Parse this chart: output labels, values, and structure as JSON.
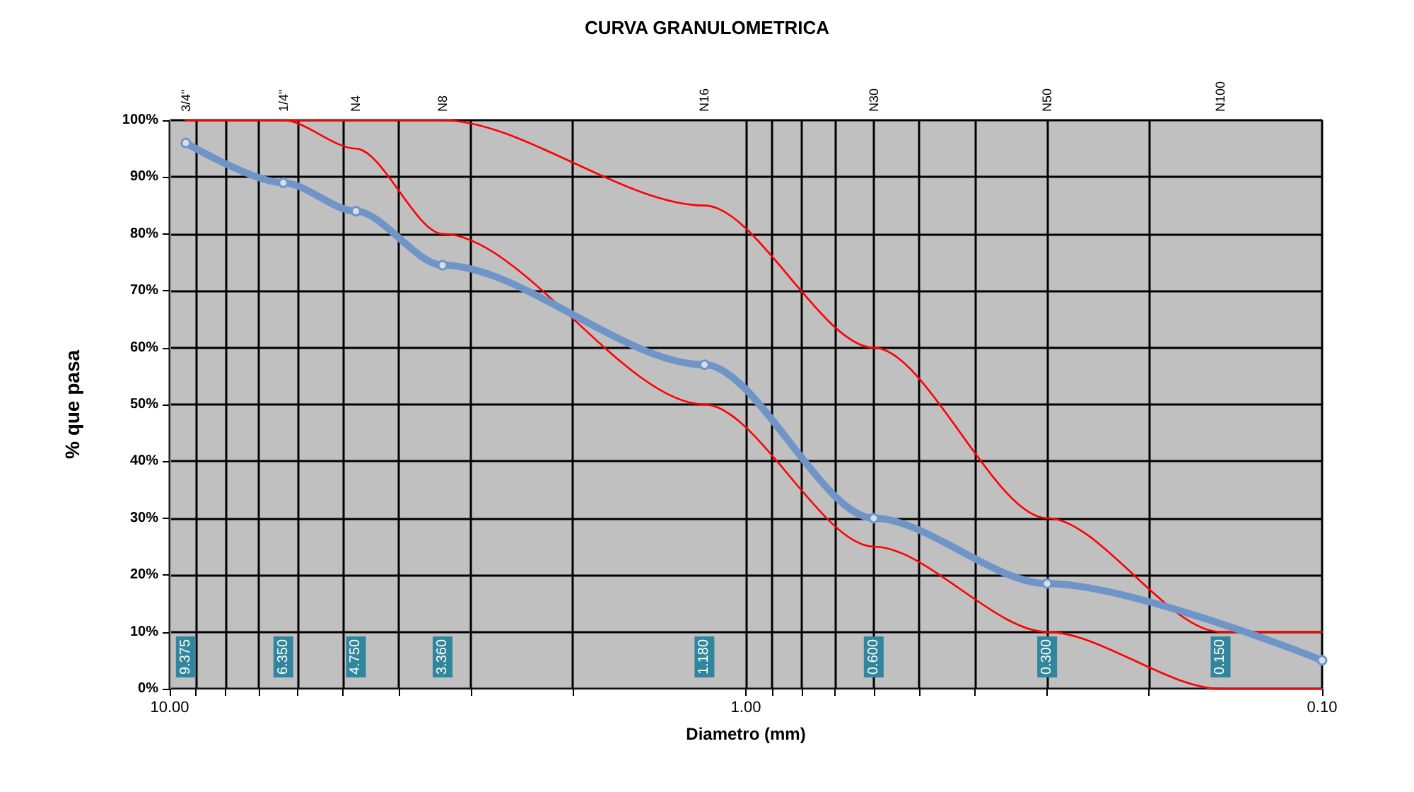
{
  "chart_data": {
    "type": "line",
    "title": "CURVA GRANULOMETRICA",
    "xlabel": "Diametro (mm)",
    "ylabel": "% que pasa",
    "log": "x",
    "grid": true,
    "xlim": [
      10,
      0.1
    ],
    "ylim": [
      0,
      100
    ],
    "xticks": [
      {
        "value": 10,
        "label": "10.00"
      },
      {
        "value": 9,
        "label": null
      },
      {
        "value": 8,
        "label": null
      },
      {
        "value": 7,
        "label": null
      },
      {
        "value": 6,
        "label": null
      },
      {
        "value": 5,
        "label": null
      },
      {
        "value": 4,
        "label": null
      },
      {
        "value": 3,
        "label": null
      },
      {
        "value": 2,
        "label": null
      },
      {
        "value": 1,
        "label": "1.00"
      },
      {
        "value": 0.9,
        "label": null
      },
      {
        "value": 0.8,
        "label": null
      },
      {
        "value": 0.7,
        "label": null
      },
      {
        "value": 0.6,
        "label": null
      },
      {
        "value": 0.5,
        "label": null
      },
      {
        "value": 0.4,
        "label": null
      },
      {
        "value": 0.3,
        "label": null
      },
      {
        "value": 0.2,
        "label": null
      },
      {
        "value": 0.1,
        "label": "0.10"
      }
    ],
    "yticks": [
      {
        "value": 0,
        "label": "0%"
      },
      {
        "value": 10,
        "label": "10%"
      },
      {
        "value": 20,
        "label": "20%"
      },
      {
        "value": 30,
        "label": "30%"
      },
      {
        "value": 40,
        "label": "40%"
      },
      {
        "value": 50,
        "label": "50%"
      },
      {
        "value": 60,
        "label": "60%"
      },
      {
        "value": 70,
        "label": "70%"
      },
      {
        "value": 80,
        "label": "80%"
      },
      {
        "value": 90,
        "label": "90%"
      },
      {
        "value": 100,
        "label": "100%"
      }
    ],
    "series": [
      {
        "color": "#ff0000",
        "x": [
          9.375,
          6.35,
          4.75,
          3.36,
          1.18,
          0.6,
          0.3,
          0.15,
          0.1
        ],
        "values": [
          100,
          100,
          100,
          100,
          85,
          60,
          30,
          10,
          10
        ],
        "marker": "none"
      },
      {
        "color": "#ff0000",
        "x": [
          9.375,
          6.35,
          4.75,
          3.36,
          1.18,
          0.6,
          0.3,
          0.15,
          0.1
        ],
        "values": [
          100,
          100,
          95,
          80,
          50,
          25,
          10,
          0,
          0
        ],
        "marker": "none"
      },
      {
        "color": "#6f95c8",
        "x": [
          9.375,
          6.35,
          4.75,
          3.36,
          1.18,
          0.6,
          0.3,
          0.15,
          0.1
        ],
        "values": [
          96,
          89,
          84,
          74.5,
          57,
          30,
          18.5,
          null,
          5
        ],
        "marker": "circle"
      }
    ],
    "annotations": [
      "3/4\"",
      "1/4\"",
      "N4",
      "N8",
      "N16",
      "N30",
      "N50",
      "N100",
      "9.375",
      "6.350",
      "4.750",
      "3.360",
      "1.180",
      "0.600",
      "0.300",
      "0.150"
    ]
  }
}
